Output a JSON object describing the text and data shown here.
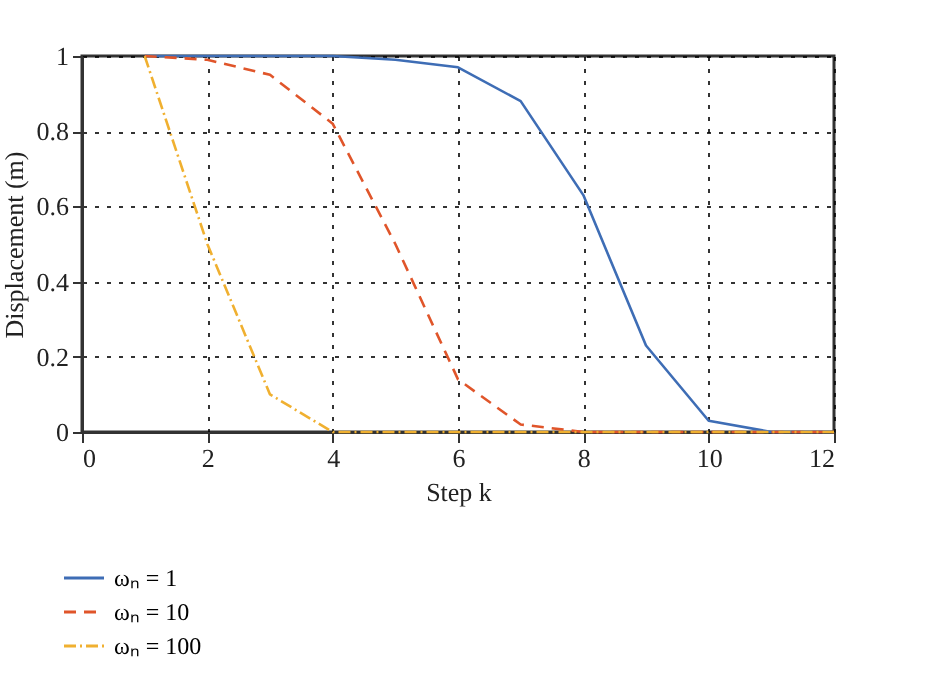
{
  "chart_data": {
    "type": "line",
    "xlabel": "Step k",
    "ylabel": "Displacement (m)",
    "x": [
      1,
      2,
      3,
      4,
      5,
      6,
      7,
      8,
      9,
      10,
      11,
      12
    ],
    "series": [
      {
        "name": "ωₙ = 1",
        "color": "#3e6db5",
        "line_style": "solid",
        "values": [
          1,
          1,
          1,
          1,
          0.99,
          0.97,
          0.88,
          0.63,
          0.23,
          0.03,
          0,
          0
        ]
      },
      {
        "name": "ωₙ = 10",
        "color": "#e0552a",
        "line_style": "dashed",
        "values": [
          1,
          0.99,
          0.95,
          0.82,
          0.5,
          0.14,
          0.02,
          0,
          0,
          0,
          0,
          0
        ]
      },
      {
        "name": "ωₙ = 100",
        "color": "#f0b030",
        "line_style": "dotted",
        "values": [
          1,
          0.5,
          0.1,
          0,
          0,
          0,
          0,
          0,
          0,
          0,
          0,
          0
        ]
      }
    ],
    "xlim": [
      0,
      12
    ],
    "xticks": [
      0,
      2,
      4,
      6,
      8,
      10,
      12
    ],
    "ylim": [
      0,
      1
    ],
    "yticks": [
      {
        "value": 0,
        "label": "0"
      },
      0.2,
      0.4,
      0.6,
      0.8,
      {
        "value": 1,
        "label": "1"
      }
    ],
    "grid": true,
    "legend": "bottom left",
    "marker": "none"
  }
}
